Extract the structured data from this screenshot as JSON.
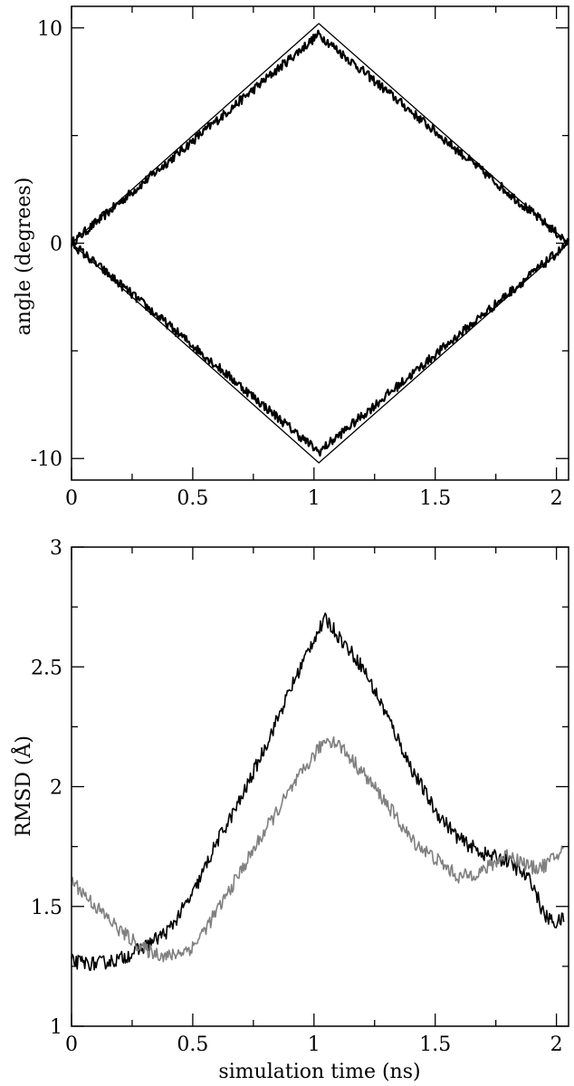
{
  "chart_data": [
    {
      "type": "line",
      "xlabel": "",
      "ylabel": "angle (degrees)",
      "xlim": [
        0,
        2.05
      ],
      "ylim": [
        -11,
        11
      ],
      "x_ticks": [
        0,
        0.5,
        1,
        1.5,
        2
      ],
      "x_tick_labels": [
        "0",
        "0.5",
        "1",
        "1.5",
        "2"
      ],
      "y_ticks": [
        -10,
        0,
        10
      ],
      "y_tick_labels": [
        "-10",
        "0",
        "10"
      ],
      "grid": false,
      "series": [
        {
          "color": "#000000",
          "style": "thin",
          "x": [
            0,
            1.02,
            2.05
          ],
          "y": [
            0,
            10.2,
            0
          ]
        },
        {
          "color": "#000000",
          "style": "thin",
          "x": [
            0,
            1.02,
            2.05
          ],
          "y": [
            0,
            -10.2,
            0
          ]
        },
        {
          "color": "#000000",
          "style": "noisy",
          "x": [
            0,
            1.02,
            2.05
          ],
          "y": [
            0,
            9.7,
            0
          ]
        },
        {
          "color": "#000000",
          "style": "noisy",
          "x": [
            0,
            1.02,
            2.05
          ],
          "y": [
            0,
            -9.7,
            0
          ]
        }
      ]
    },
    {
      "type": "line",
      "xlabel": "simulation time (ns)",
      "ylabel": "RMSD (Å)",
      "xlim": [
        0,
        2.05
      ],
      "ylim": [
        1,
        3
      ],
      "x_ticks": [
        0,
        0.5,
        1,
        1.5,
        2
      ],
      "x_tick_labels": [
        "0",
        "0.5",
        "1",
        "1.5",
        "2"
      ],
      "y_ticks": [
        1,
        1.5,
        2,
        2.5,
        3
      ],
      "y_tick_labels": [
        "1",
        "1.5",
        "2",
        "2.5",
        "3"
      ],
      "grid": false,
      "series": [
        {
          "color": "#000000",
          "x": [
            0,
            0.1,
            0.2,
            0.3,
            0.4,
            0.5,
            0.6,
            0.7,
            0.8,
            0.9,
            1.0,
            1.05,
            1.1,
            1.2,
            1.3,
            1.4,
            1.5,
            1.6,
            1.7,
            1.8,
            1.9,
            1.95,
            2.0,
            2.03
          ],
          "y": [
            1.27,
            1.26,
            1.28,
            1.33,
            1.4,
            1.55,
            1.77,
            1.95,
            2.17,
            2.4,
            2.62,
            2.7,
            2.63,
            2.5,
            2.3,
            2.08,
            1.9,
            1.78,
            1.72,
            1.69,
            1.6,
            1.46,
            1.43,
            1.45
          ]
        },
        {
          "color": "#808080",
          "x": [
            0,
            0.1,
            0.2,
            0.3,
            0.4,
            0.5,
            0.6,
            0.7,
            0.8,
            0.9,
            1.0,
            1.05,
            1.1,
            1.2,
            1.3,
            1.4,
            1.5,
            1.6,
            1.7,
            1.8,
            1.9,
            1.95,
            2.0,
            2.03
          ],
          "y": [
            1.61,
            1.5,
            1.4,
            1.32,
            1.29,
            1.33,
            1.48,
            1.65,
            1.82,
            1.98,
            2.13,
            2.2,
            2.18,
            2.06,
            1.93,
            1.78,
            1.7,
            1.62,
            1.65,
            1.72,
            1.66,
            1.67,
            1.71,
            1.74
          ]
        }
      ]
    }
  ]
}
